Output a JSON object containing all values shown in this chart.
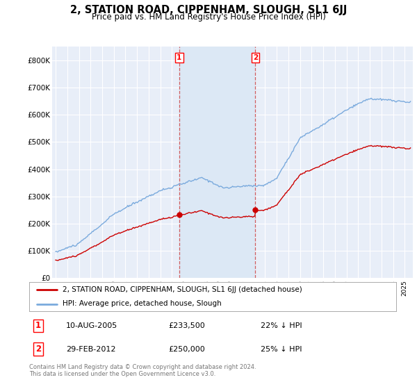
{
  "title": "2, STATION ROAD, CIPPENHAM, SLOUGH, SL1 6JJ",
  "subtitle": "Price paid vs. HM Land Registry's House Price Index (HPI)",
  "ylim": [
    0,
    850000
  ],
  "yticks": [
    0,
    100000,
    200000,
    300000,
    400000,
    500000,
    600000,
    700000,
    800000
  ],
  "ytick_labels": [
    "£0",
    "£100K",
    "£200K",
    "£300K",
    "£400K",
    "£500K",
    "£600K",
    "£700K",
    "£800K"
  ],
  "hpi_color": "#7aaadd",
  "price_color": "#cc0000",
  "bg_color": "#e8eef8",
  "span_color": "#dce8f5",
  "transaction1": {
    "date_num": 2005.625,
    "price": 233500,
    "label": "1",
    "pct": "22% ↓ HPI",
    "date_str": "10-AUG-2005"
  },
  "transaction2": {
    "date_num": 2012.167,
    "price": 250000,
    "label": "2",
    "pct": "25% ↓ HPI",
    "date_str": "29-FEB-2012"
  },
  "legend_property": "2, STATION ROAD, CIPPENHAM, SLOUGH, SL1 6JJ (detached house)",
  "legend_hpi": "HPI: Average price, detached house, Slough",
  "footer": "Contains HM Land Registry data © Crown copyright and database right 2024.\nThis data is licensed under the Open Government Licence v3.0.",
  "xlim_start": 1994.7,
  "xlim_end": 2025.7
}
